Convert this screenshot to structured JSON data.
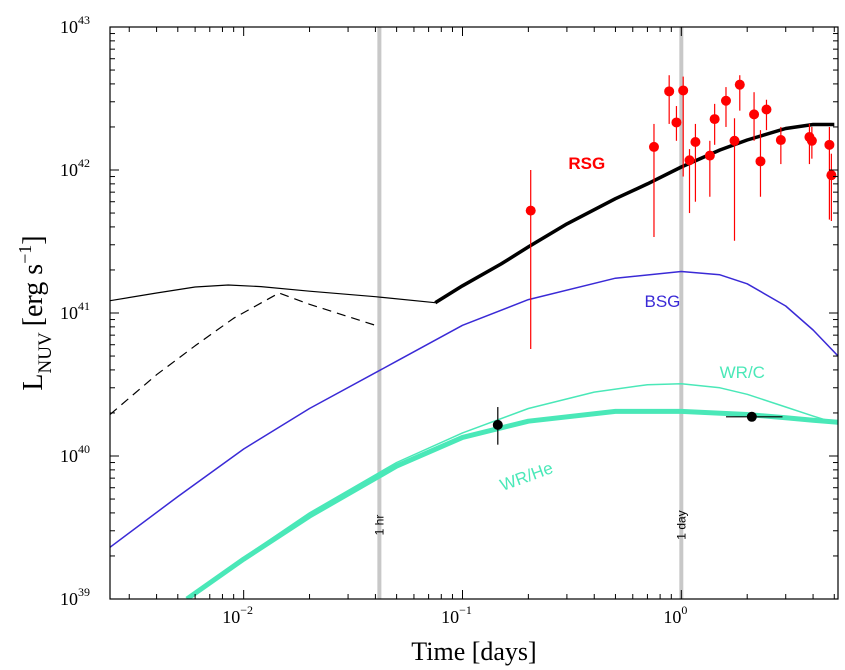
{
  "chart_data": {
    "type": "line",
    "xlabel": "Time [days]",
    "ylabel": {
      "main": "L",
      "sub": "NUV",
      "unit_open": "[erg s",
      "unit_exp": "−1",
      "unit_close": "]"
    },
    "xscale": "log",
    "yscale": "log",
    "xlim": [
      0.00245,
      5.2
    ],
    "ylim": [
      1e+39,
      1e+43
    ],
    "grid": false,
    "x_ticks": [
      {
        "value": 0.01,
        "base": "10",
        "exp": "−2"
      },
      {
        "value": 0.1,
        "base": "10",
        "exp": "−1"
      },
      {
        "value": 1,
        "base": "10",
        "exp": "0"
      }
    ],
    "y_ticks": [
      {
        "value": 1e+39,
        "base": "10",
        "exp": "39"
      },
      {
        "value": 1e+40,
        "base": "10",
        "exp": "40"
      },
      {
        "value": 1e+41,
        "base": "10",
        "exp": "41"
      },
      {
        "value": 1e+42,
        "base": "10",
        "exp": "42"
      },
      {
        "value": 1e+43,
        "base": "10",
        "exp": "43"
      }
    ],
    "vertical_markers": [
      {
        "x": 0.0417,
        "label": "1 hr",
        "color": "#c8c8c8"
      },
      {
        "x": 1.0,
        "label": "1 day",
        "color": "#c8c8c8"
      }
    ],
    "series": [
      {
        "name": "RSG",
        "color": "#000000",
        "width": 3.5,
        "dash": "",
        "points": [
          [
            0.075,
            1.18e+41
          ],
          [
            0.1,
            1.55e+41
          ],
          [
            0.15,
            2.2e+41
          ],
          [
            0.2,
            2.9e+41
          ],
          [
            0.3,
            4.2e+41
          ],
          [
            0.5,
            6.3e+41
          ],
          [
            0.7,
            8e+41
          ],
          [
            1.0,
            1.05e+42
          ],
          [
            1.5,
            1.38e+42
          ],
          [
            2.0,
            1.62e+42
          ],
          [
            3.0,
            1.95e+42
          ],
          [
            4.0,
            2.08e+42
          ],
          [
            5.0,
            2.08e+42
          ]
        ]
      },
      {
        "name": "",
        "color": "#000000",
        "width": 1.2,
        "dash": "",
        "points": [
          [
            0.00245,
            1.22e+41
          ],
          [
            0.004,
            1.38e+41
          ],
          [
            0.006,
            1.52e+41
          ],
          [
            0.0085,
            1.57e+41
          ],
          [
            0.012,
            1.53e+41
          ],
          [
            0.02,
            1.42e+41
          ],
          [
            0.04,
            1.3e+41
          ],
          [
            0.075,
            1.18e+41
          ]
        ]
      },
      {
        "name": "",
        "color": "#000000",
        "width": 1.2,
        "dash": "9,6",
        "points": [
          [
            0.00245,
            1.95e+40
          ],
          [
            0.004,
            3.7e+40
          ],
          [
            0.006,
            5.9e+40
          ],
          [
            0.009,
            9.2e+40
          ],
          [
            0.0145,
            1.38e+41
          ],
          [
            0.02,
            1.15e+41
          ],
          [
            0.04,
            8.2e+40
          ]
        ]
      },
      {
        "name": "BSG",
        "color": "#3a2ad6",
        "width": 1.5,
        "dash": "",
        "points": [
          [
            0.00245,
            2.3e+39
          ],
          [
            0.005,
            5.2e+39
          ],
          [
            0.01,
            1.12e+40
          ],
          [
            0.02,
            2.15e+40
          ],
          [
            0.05,
            4.6e+40
          ],
          [
            0.1,
            8.2e+40
          ],
          [
            0.2,
            1.24e+41
          ],
          [
            0.5,
            1.75e+41
          ],
          [
            1.0,
            1.95e+41
          ],
          [
            1.5,
            1.85e+41
          ],
          [
            2.0,
            1.6e+41
          ],
          [
            3.0,
            1.12e+41
          ],
          [
            4.0,
            7.6e+40
          ],
          [
            5.2,
            5e+40
          ]
        ]
      },
      {
        "name": "WR/C",
        "color": "#4ae8b8",
        "width": 1.5,
        "dash": "",
        "points": [
          [
            0.0055,
            1e+39
          ],
          [
            0.01,
            1.95e+39
          ],
          [
            0.02,
            4e+39
          ],
          [
            0.05,
            9e+39
          ],
          [
            0.1,
            1.45e+40
          ],
          [
            0.2,
            2.15e+40
          ],
          [
            0.4,
            2.8e+40
          ],
          [
            0.7,
            3.15e+40
          ],
          [
            1.0,
            3.2e+40
          ],
          [
            1.5,
            3e+40
          ],
          [
            2.0,
            2.7e+40
          ],
          [
            3.0,
            2.2e+40
          ],
          [
            4.0,
            1.9e+40
          ],
          [
            5.2,
            1.68e+40
          ]
        ]
      },
      {
        "name": "WR/He",
        "color": "#4ae8b8",
        "width": 5,
        "dash": "",
        "points": [
          [
            0.0055,
            1e+39
          ],
          [
            0.01,
            1.9e+39
          ],
          [
            0.02,
            3.8e+39
          ],
          [
            0.05,
            8.5e+39
          ],
          [
            0.1,
            1.35e+40
          ],
          [
            0.2,
            1.75e+40
          ],
          [
            0.5,
            2.05e+40
          ],
          [
            1.0,
            2.05e+40
          ],
          [
            2.0,
            1.95e+40
          ],
          [
            3.0,
            1.85e+40
          ],
          [
            4.0,
            1.78e+40
          ],
          [
            5.2,
            1.72e+40
          ]
        ]
      }
    ],
    "annotations": [
      {
        "text": "RSG",
        "x": 0.37,
        "y": 1.02e+42,
        "color": "#ff0000",
        "bold": true,
        "size": 20
      },
      {
        "text": "BSG",
        "x": 0.82,
        "y": 1.1e+41,
        "color": "#3a2ad6",
        "bold": false,
        "size": 17
      },
      {
        "text": "WR/C",
        "x": 1.9,
        "y": 3.5e+40,
        "color": "#4ae8b8",
        "bold": false,
        "size": 17
      },
      {
        "text": "WR/He",
        "x": 0.2,
        "y": 6.6e+39,
        "color": "#4ae8b8",
        "bold": false,
        "size": 17,
        "rotate": -20
      }
    ],
    "red_data": {
      "color": "#ff0000",
      "points": [
        {
          "x": 0.205,
          "y": 5.2e+41,
          "ylo": 5.6e+40,
          "yhi": 1e+42
        },
        {
          "x": 0.75,
          "y": 1.45e+42,
          "ylo": 3.4e+41,
          "yhi": 2.1e+42
        },
        {
          "x": 0.88,
          "y": 3.55e+42,
          "ylo": 2.1e+42,
          "yhi": 4.6e+42
        },
        {
          "x": 0.95,
          "y": 2.15e+42,
          "ylo": 1.6e+42,
          "yhi": 2.8e+42
        },
        {
          "x": 1.02,
          "y": 3.6e+42,
          "ylo": 9e+41,
          "yhi": 4.5e+42
        },
        {
          "x": 1.09,
          "y": 1.17e+42,
          "ylo": 5e+41,
          "yhi": 1.4e+42
        },
        {
          "x": 1.16,
          "y": 1.57e+42,
          "ylo": 6e+41,
          "yhi": 2.1e+42
        },
        {
          "x": 1.35,
          "y": 1.26e+42,
          "ylo": 6.5e+41,
          "yhi": 1.6e+42
        },
        {
          "x": 1.42,
          "y": 2.27e+42,
          "ylo": 1.5e+42,
          "yhi": 2.9e+42
        },
        {
          "x": 1.6,
          "y": 3.05e+42,
          "ylo": 2e+42,
          "yhi": 3.8e+42
        },
        {
          "x": 1.75,
          "y": 1.6e+42,
          "ylo": 3.2e+41,
          "yhi": 2.3e+42
        },
        {
          "x": 1.85,
          "y": 3.95e+42,
          "ylo": 2.6e+42,
          "yhi": 4.6e+42
        },
        {
          "x": 2.15,
          "y": 2.45e+42,
          "ylo": 1.6e+42,
          "yhi": 3.5e+42
        },
        {
          "x": 2.3,
          "y": 1.15e+42,
          "ylo": 6.5e+41,
          "yhi": 1.9e+42
        },
        {
          "x": 2.45,
          "y": 2.65e+42,
          "ylo": 1.9e+42,
          "yhi": 3.1e+42
        },
        {
          "x": 2.85,
          "y": 1.62e+42,
          "ylo": 1.1e+42,
          "yhi": 2e+42
        },
        {
          "x": 3.85,
          "y": 1.7e+42,
          "ylo": 1.1e+42,
          "yhi": 2.1e+42
        },
        {
          "x": 3.95,
          "y": 1.6e+42,
          "ylo": 1.2e+42,
          "yhi": 2e+42
        },
        {
          "x": 4.75,
          "y": 1.5e+42,
          "ylo": 4.5e+41,
          "yhi": 2e+42
        },
        {
          "x": 4.85,
          "y": 9.2e+41,
          "ylo": 4.4e+41,
          "yhi": 1.3e+42
        }
      ]
    },
    "black_data": {
      "color": "#000000",
      "points": [
        {
          "x": 0.145,
          "y": 1.65e+40,
          "ylo": 1.2e+40,
          "yhi": 2.2e+40,
          "xlo": 0.145,
          "xhi": 0.145
        },
        {
          "x": 2.1,
          "y": 1.88e+40,
          "ylo": 1.88e+40,
          "yhi": 1.88e+40,
          "xlo": 1.6,
          "xhi": 2.9
        }
      ]
    }
  }
}
